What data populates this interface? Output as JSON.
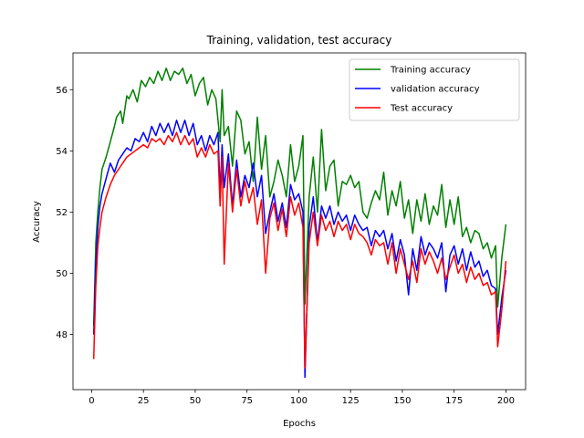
{
  "chart_data": {
    "type": "line",
    "title": "Training, validation, test accuracy",
    "xlabel": "Epochs",
    "ylabel": "Accuracy",
    "xlim": [
      -9,
      209.5
    ],
    "ylim": [
      46.2,
      57.2
    ],
    "xticks": [
      0,
      25,
      50,
      75,
      100,
      125,
      150,
      175,
      200
    ],
    "yticks": [
      48,
      50,
      52,
      54,
      56
    ],
    "grid": false,
    "legend": "top-right",
    "series": [
      {
        "name": "Training accuracy",
        "color": "#008000",
        "points": [
          [
            1,
            48.3
          ],
          [
            2,
            51.0
          ],
          [
            3,
            52.0
          ],
          [
            4,
            52.8
          ],
          [
            5,
            53.4
          ],
          [
            7,
            53.8
          ],
          [
            9,
            54.3
          ],
          [
            11,
            54.8
          ],
          [
            12,
            55.1
          ],
          [
            14,
            55.3
          ],
          [
            15,
            54.9
          ],
          [
            17,
            55.8
          ],
          [
            18,
            55.7
          ],
          [
            20,
            56.0
          ],
          [
            22,
            55.6
          ],
          [
            24,
            56.3
          ],
          [
            26,
            56.1
          ],
          [
            28,
            56.4
          ],
          [
            30,
            56.2
          ],
          [
            32,
            56.6
          ],
          [
            34,
            56.3
          ],
          [
            36,
            56.7
          ],
          [
            38,
            56.3
          ],
          [
            40,
            56.6
          ],
          [
            42,
            56.5
          ],
          [
            44,
            56.7
          ],
          [
            46,
            56.2
          ],
          [
            48,
            56.5
          ],
          [
            50,
            55.8
          ],
          [
            52,
            56.2
          ],
          [
            54,
            56.4
          ],
          [
            56,
            55.5
          ],
          [
            58,
            56.0
          ],
          [
            60,
            55.7
          ],
          [
            62,
            54.3
          ],
          [
            63,
            56.0
          ],
          [
            64,
            54.5
          ],
          [
            66,
            54.8
          ],
          [
            68,
            53.5
          ],
          [
            70,
            55.3
          ],
          [
            72,
            55.0
          ],
          [
            74,
            53.9
          ],
          [
            76,
            54.3
          ],
          [
            78,
            53.0
          ],
          [
            80,
            55.1
          ],
          [
            82,
            53.4
          ],
          [
            84,
            54.5
          ],
          [
            86,
            52.5
          ],
          [
            88,
            53.0
          ],
          [
            90,
            53.7
          ],
          [
            92,
            53.2
          ],
          [
            94,
            52.5
          ],
          [
            96,
            54.2
          ],
          [
            98,
            53.0
          ],
          [
            100,
            53.5
          ],
          [
            102,
            54.5
          ],
          [
            103,
            49.0
          ],
          [
            105,
            52.5
          ],
          [
            107,
            53.8
          ],
          [
            109,
            52.0
          ],
          [
            111,
            54.7
          ],
          [
            113,
            52.7
          ],
          [
            115,
            53.5
          ],
          [
            117,
            53.7
          ],
          [
            119,
            52.2
          ],
          [
            121,
            53.0
          ],
          [
            123,
            52.9
          ],
          [
            125,
            53.2
          ],
          [
            127,
            52.8
          ],
          [
            129,
            53.0
          ],
          [
            131,
            52.0
          ],
          [
            133,
            51.8
          ],
          [
            135,
            52.3
          ],
          [
            137,
            52.7
          ],
          [
            139,
            52.4
          ],
          [
            141,
            53.3
          ],
          [
            143,
            51.9
          ],
          [
            145,
            52.7
          ],
          [
            147,
            52.2
          ],
          [
            149,
            53.0
          ],
          [
            151,
            51.8
          ],
          [
            153,
            52.4
          ],
          [
            155,
            51.3
          ],
          [
            157,
            52.4
          ],
          [
            159,
            51.7
          ],
          [
            161,
            52.6
          ],
          [
            163,
            51.6
          ],
          [
            165,
            52.2
          ],
          [
            167,
            51.9
          ],
          [
            169,
            52.9
          ],
          [
            171,
            51.5
          ],
          [
            173,
            52.4
          ],
          [
            175,
            51.6
          ],
          [
            177,
            52.5
          ],
          [
            179,
            51.2
          ],
          [
            181,
            51.5
          ],
          [
            183,
            51.0
          ],
          [
            185,
            51.4
          ],
          [
            187,
            51.3
          ],
          [
            189,
            50.8
          ],
          [
            191,
            51.0
          ],
          [
            193,
            50.5
          ],
          [
            195,
            50.9
          ],
          [
            196,
            48.9
          ],
          [
            198,
            50.5
          ],
          [
            200,
            51.6
          ]
        ]
      },
      {
        "name": "validation accuracy",
        "color": "#0000ff",
        "points": [
          [
            1,
            48.0
          ],
          [
            2,
            50.3
          ],
          [
            3,
            51.5
          ],
          [
            4,
            52.2
          ],
          [
            5,
            52.6
          ],
          [
            7,
            53.1
          ],
          [
            9,
            53.6
          ],
          [
            11,
            53.3
          ],
          [
            13,
            53.7
          ],
          [
            15,
            53.9
          ],
          [
            17,
            54.1
          ],
          [
            19,
            54.0
          ],
          [
            21,
            54.4
          ],
          [
            23,
            54.3
          ],
          [
            25,
            54.6
          ],
          [
            27,
            54.3
          ],
          [
            29,
            54.8
          ],
          [
            31,
            54.5
          ],
          [
            33,
            54.9
          ],
          [
            35,
            54.6
          ],
          [
            37,
            54.9
          ],
          [
            39,
            54.5
          ],
          [
            41,
            55.0
          ],
          [
            43,
            54.6
          ],
          [
            45,
            55.0
          ],
          [
            47,
            54.5
          ],
          [
            49,
            54.9
          ],
          [
            51,
            54.2
          ],
          [
            53,
            54.5
          ],
          [
            55,
            54.0
          ],
          [
            57,
            54.5
          ],
          [
            59,
            54.2
          ],
          [
            61,
            54.6
          ],
          [
            62,
            52.6
          ],
          [
            63,
            54.2
          ],
          [
            64,
            52.8
          ],
          [
            66,
            53.9
          ],
          [
            68,
            52.2
          ],
          [
            70,
            53.7
          ],
          [
            72,
            52.5
          ],
          [
            74,
            53.2
          ],
          [
            76,
            52.8
          ],
          [
            78,
            53.6
          ],
          [
            80,
            52.5
          ],
          [
            82,
            53.2
          ],
          [
            84,
            51.3
          ],
          [
            86,
            52.0
          ],
          [
            88,
            52.6
          ],
          [
            90,
            51.7
          ],
          [
            92,
            52.3
          ],
          [
            94,
            51.5
          ],
          [
            96,
            52.9
          ],
          [
            98,
            52.4
          ],
          [
            100,
            52.6
          ],
          [
            102,
            52.0
          ],
          [
            103,
            46.6
          ],
          [
            105,
            51.5
          ],
          [
            107,
            52.5
          ],
          [
            109,
            51.0
          ],
          [
            111,
            52.2
          ],
          [
            113,
            51.8
          ],
          [
            115,
            52.2
          ],
          [
            117,
            51.6
          ],
          [
            119,
            52.0
          ],
          [
            121,
            51.7
          ],
          [
            123,
            51.9
          ],
          [
            125,
            51.4
          ],
          [
            127,
            51.9
          ],
          [
            129,
            51.6
          ],
          [
            131,
            51.4
          ],
          [
            133,
            51.5
          ],
          [
            135,
            50.9
          ],
          [
            137,
            51.4
          ],
          [
            139,
            51.2
          ],
          [
            141,
            51.4
          ],
          [
            143,
            50.8
          ],
          [
            145,
            51.3
          ],
          [
            147,
            50.4
          ],
          [
            149,
            51.1
          ],
          [
            151,
            50.6
          ],
          [
            153,
            49.3
          ],
          [
            155,
            50.8
          ],
          [
            157,
            50.1
          ],
          [
            159,
            51.2
          ],
          [
            161,
            50.6
          ],
          [
            163,
            51.0
          ],
          [
            165,
            50.8
          ],
          [
            167,
            50.5
          ],
          [
            169,
            51.0
          ],
          [
            171,
            49.4
          ],
          [
            173,
            50.6
          ],
          [
            175,
            50.9
          ],
          [
            177,
            50.3
          ],
          [
            179,
            50.8
          ],
          [
            181,
            50.1
          ],
          [
            183,
            50.7
          ],
          [
            185,
            50.2
          ],
          [
            187,
            50.4
          ],
          [
            189,
            49.9
          ],
          [
            191,
            50.1
          ],
          [
            193,
            49.6
          ],
          [
            195,
            49.5
          ],
          [
            196,
            48.0
          ],
          [
            198,
            49.2
          ],
          [
            200,
            50.1
          ]
        ]
      },
      {
        "name": "Test accuracy",
        "color": "#ff0000",
        "points": [
          [
            1,
            47.2
          ],
          [
            2,
            49.6
          ],
          [
            3,
            50.9
          ],
          [
            4,
            51.5
          ],
          [
            5,
            52.0
          ],
          [
            7,
            52.5
          ],
          [
            9,
            52.9
          ],
          [
            11,
            53.2
          ],
          [
            13,
            53.4
          ],
          [
            15,
            53.6
          ],
          [
            17,
            53.8
          ],
          [
            19,
            53.9
          ],
          [
            21,
            54.0
          ],
          [
            23,
            54.1
          ],
          [
            25,
            54.2
          ],
          [
            27,
            54.1
          ],
          [
            29,
            54.4
          ],
          [
            31,
            54.3
          ],
          [
            33,
            54.4
          ],
          [
            35,
            54.2
          ],
          [
            37,
            54.5
          ],
          [
            39,
            54.3
          ],
          [
            41,
            54.6
          ],
          [
            43,
            54.2
          ],
          [
            45,
            54.5
          ],
          [
            47,
            54.2
          ],
          [
            49,
            54.4
          ],
          [
            51,
            53.8
          ],
          [
            53,
            54.1
          ],
          [
            55,
            53.8
          ],
          [
            57,
            54.2
          ],
          [
            59,
            53.9
          ],
          [
            61,
            54.0
          ],
          [
            62,
            52.2
          ],
          [
            63,
            53.8
          ],
          [
            64,
            50.3
          ],
          [
            66,
            53.6
          ],
          [
            68,
            52.0
          ],
          [
            70,
            53.4
          ],
          [
            72,
            52.2
          ],
          [
            74,
            53.0
          ],
          [
            76,
            52.3
          ],
          [
            78,
            52.8
          ],
          [
            80,
            51.6
          ],
          [
            82,
            52.4
          ],
          [
            84,
            50.0
          ],
          [
            86,
            51.8
          ],
          [
            88,
            52.3
          ],
          [
            90,
            51.4
          ],
          [
            92,
            52.1
          ],
          [
            94,
            51.2
          ],
          [
            96,
            52.5
          ],
          [
            98,
            51.9
          ],
          [
            100,
            52.3
          ],
          [
            102,
            51.5
          ],
          [
            103,
            46.9
          ],
          [
            105,
            51.0
          ],
          [
            107,
            52.0
          ],
          [
            109,
            50.9
          ],
          [
            111,
            51.9
          ],
          [
            113,
            51.4
          ],
          [
            115,
            51.7
          ],
          [
            117,
            51.2
          ],
          [
            119,
            51.7
          ],
          [
            121,
            51.4
          ],
          [
            123,
            51.6
          ],
          [
            125,
            51.1
          ],
          [
            127,
            51.6
          ],
          [
            129,
            51.3
          ],
          [
            131,
            51.2
          ],
          [
            133,
            51.0
          ],
          [
            135,
            50.6
          ],
          [
            137,
            51.1
          ],
          [
            139,
            50.9
          ],
          [
            141,
            51.0
          ],
          [
            143,
            50.3
          ],
          [
            145,
            51.0
          ],
          [
            147,
            50.0
          ],
          [
            149,
            50.8
          ],
          [
            151,
            50.3
          ],
          [
            153,
            49.8
          ],
          [
            155,
            50.4
          ],
          [
            157,
            49.7
          ],
          [
            159,
            50.8
          ],
          [
            161,
            50.3
          ],
          [
            163,
            50.7
          ],
          [
            165,
            50.4
          ],
          [
            167,
            50.0
          ],
          [
            169,
            50.5
          ],
          [
            171,
            49.8
          ],
          [
            173,
            50.2
          ],
          [
            175,
            50.6
          ],
          [
            177,
            50.0
          ],
          [
            179,
            50.3
          ],
          [
            181,
            49.7
          ],
          [
            183,
            50.2
          ],
          [
            185,
            49.8
          ],
          [
            187,
            50.0
          ],
          [
            189,
            49.6
          ],
          [
            191,
            49.7
          ],
          [
            193,
            49.3
          ],
          [
            195,
            49.4
          ],
          [
            196,
            47.6
          ],
          [
            198,
            48.8
          ],
          [
            200,
            50.4
          ]
        ]
      }
    ]
  }
}
